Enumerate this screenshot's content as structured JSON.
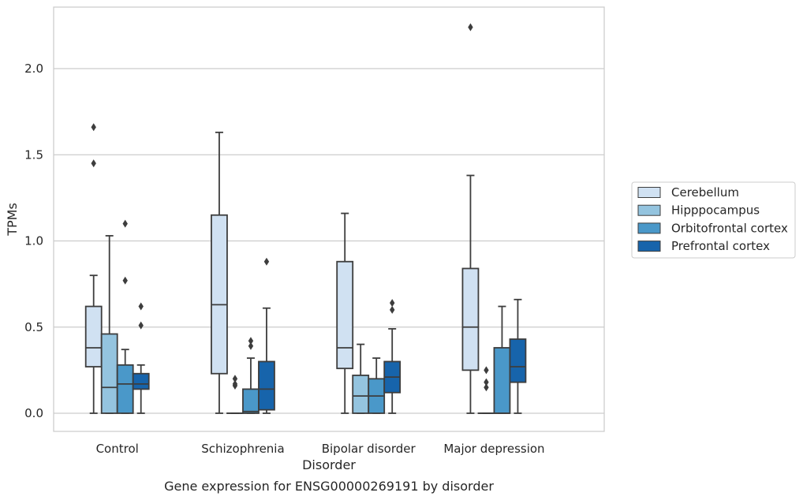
{
  "chart_data": {
    "type": "box",
    "title": "Gene expression for ENSG00000269191 by disorder",
    "xlabel": "Disorder",
    "ylabel": "TPMs",
    "ylim": [
      -0.11,
      2.38
    ],
    "yticks": [
      "0.0",
      "0.5",
      "1.0",
      "1.5",
      "2.0"
    ],
    "grid": "horizontal",
    "legend_position": "right",
    "categories": [
      "Control",
      "Schizophrenia",
      "Bipolar disorder",
      "Major depression"
    ],
    "series": [
      {
        "name": "Cerebellum",
        "color": "#d0e1f2",
        "boxes": [
          {
            "whisker_low": 0.0,
            "q1": 0.27,
            "median": 0.38,
            "q3": 0.62,
            "whisker_high": 0.8,
            "outliers": [
              1.45,
              1.66
            ]
          },
          {
            "whisker_low": 0.0,
            "q1": 0.23,
            "median": 0.63,
            "q3": 1.15,
            "whisker_high": 1.63,
            "outliers": []
          },
          {
            "whisker_low": 0.0,
            "q1": 0.26,
            "median": 0.38,
            "q3": 0.88,
            "whisker_high": 1.16,
            "outliers": []
          },
          {
            "whisker_low": 0.0,
            "q1": 0.25,
            "median": 0.5,
            "q3": 0.84,
            "whisker_high": 1.38,
            "outliers": [
              2.24
            ]
          }
        ]
      },
      {
        "name": "Hipppocampus",
        "color": "#94c4df",
        "boxes": [
          {
            "whisker_low": 0.0,
            "q1": 0.0,
            "median": 0.15,
            "q3": 0.46,
            "whisker_high": 1.03,
            "outliers": []
          },
          {
            "whisker_low": 0.0,
            "q1": 0.0,
            "median": 0.0,
            "q3": 0.0,
            "whisker_high": 0.0,
            "outliers": [
              0.16,
              0.17,
              0.2
            ]
          },
          {
            "whisker_low": 0.0,
            "q1": 0.0,
            "median": 0.1,
            "q3": 0.22,
            "whisker_high": 0.4,
            "outliers": []
          },
          {
            "whisker_low": 0.0,
            "q1": 0.0,
            "median": 0.0,
            "q3": 0.0,
            "whisker_high": 0.0,
            "outliers": [
              0.15,
              0.18,
              0.25
            ]
          }
        ]
      },
      {
        "name": "Orbitofrontal cortex",
        "color": "#4a98c9",
        "boxes": [
          {
            "whisker_low": 0.0,
            "q1": 0.0,
            "median": 0.17,
            "q3": 0.28,
            "whisker_high": 0.37,
            "outliers": [
              0.77,
              1.1
            ]
          },
          {
            "whisker_low": 0.0,
            "q1": 0.0,
            "median": 0.01,
            "q3": 0.14,
            "whisker_high": 0.32,
            "outliers": [
              0.39,
              0.42
            ]
          },
          {
            "whisker_low": 0.0,
            "q1": 0.0,
            "median": 0.1,
            "q3": 0.2,
            "whisker_high": 0.32,
            "outliers": []
          },
          {
            "whisker_low": 0.0,
            "q1": 0.0,
            "median": 0.0,
            "q3": 0.38,
            "whisker_high": 0.62,
            "outliers": []
          }
        ]
      },
      {
        "name": "Prefrontal cortex",
        "color": "#1764ab",
        "boxes": [
          {
            "whisker_low": 0.0,
            "q1": 0.14,
            "median": 0.17,
            "q3": 0.23,
            "whisker_high": 0.28,
            "outliers": [
              0.51,
              0.62
            ]
          },
          {
            "whisker_low": 0.0,
            "q1": 0.02,
            "median": 0.14,
            "q3": 0.3,
            "whisker_high": 0.61,
            "outliers": [
              0.88
            ]
          },
          {
            "whisker_low": 0.0,
            "q1": 0.12,
            "median": 0.21,
            "q3": 0.3,
            "whisker_high": 0.49,
            "outliers": [
              0.6,
              0.64
            ]
          },
          {
            "whisker_low": 0.0,
            "q1": 0.18,
            "median": 0.27,
            "q3": 0.43,
            "whisker_high": 0.66,
            "outliers": []
          }
        ]
      }
    ]
  }
}
